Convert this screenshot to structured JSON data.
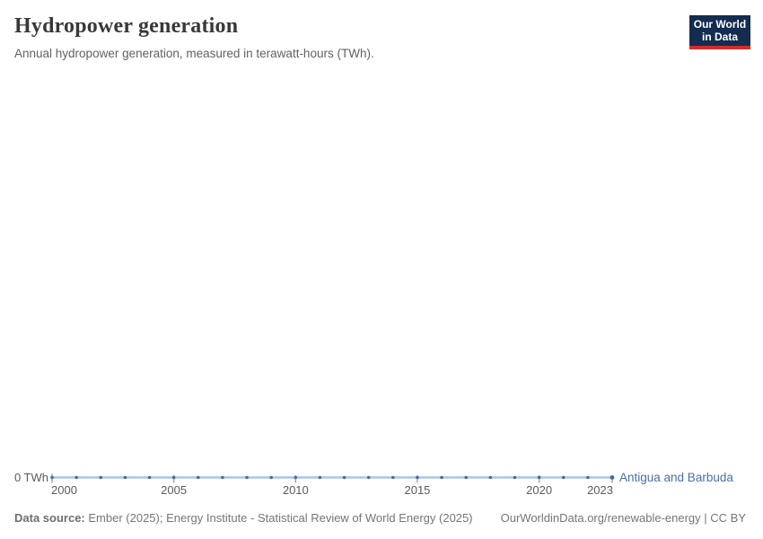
{
  "header": {
    "title": "Hydropower generation",
    "subtitle": "Annual hydropower generation, measured in terawatt-hours (TWh).",
    "logo": {
      "line1": "Our World",
      "line2": "in Data"
    }
  },
  "chart_data": {
    "type": "line",
    "title": "Hydropower generation",
    "subtitle": "Annual hydropower generation, measured in terawatt-hours (TWh).",
    "unit": "TWh",
    "x": [
      2000,
      2001,
      2002,
      2003,
      2004,
      2005,
      2006,
      2007,
      2008,
      2009,
      2010,
      2011,
      2012,
      2013,
      2014,
      2015,
      2016,
      2017,
      2018,
      2019,
      2020,
      2021,
      2022,
      2023
    ],
    "series": [
      {
        "name": "Antigua and Barbuda",
        "values": [
          0,
          0,
          0,
          0,
          0,
          0,
          0,
          0,
          0,
          0,
          0,
          0,
          0,
          0,
          0,
          0,
          0,
          0,
          0,
          0,
          0,
          0,
          0,
          0
        ]
      }
    ],
    "x_ticks": [
      2000,
      2005,
      2010,
      2015,
      2020,
      2023
    ],
    "x_tick_labels": [
      "2000",
      "2005",
      "2010",
      "2015",
      "2020",
      "2023"
    ],
    "y_ticks": [
      0
    ],
    "y_tick_labels": [
      "0 TWh"
    ],
    "y_axis_label": "0 TWh",
    "ylim": [
      0,
      1
    ],
    "grid": false,
    "legend_position": "inline-end-of-line",
    "colors": {
      "line": "#a9c5e4",
      "marker": "#4c6a9c",
      "tick": "#8ba3c2",
      "entity_label": "#4c6da9",
      "logo_bg": "#132c4f",
      "logo_accent": "#d42b2b"
    }
  },
  "footer": {
    "source_label": "Data source:",
    "source_text": "Ember (2025); Energy Institute - Statistical Review of World Energy (2025)",
    "credit": "OurWorldinData.org/renewable-energy | CC BY"
  }
}
